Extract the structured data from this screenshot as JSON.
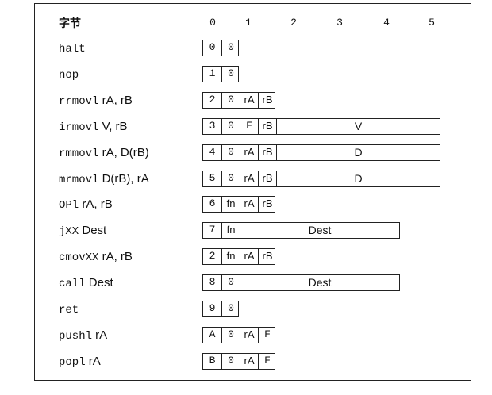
{
  "header": {
    "title": "字节",
    "columns": [
      "0",
      "1",
      "2",
      "3",
      "4",
      "5"
    ]
  },
  "instructions": [
    {
      "mnemonic": "halt",
      "operands": "",
      "fields": [
        "0",
        "0"
      ]
    },
    {
      "mnemonic": "nop",
      "operands": "",
      "fields": [
        "1",
        "0"
      ]
    },
    {
      "mnemonic": "rrmovl",
      "operands": "rA, rB",
      "fields": [
        "2",
        "0",
        "rA",
        "rB"
      ]
    },
    {
      "mnemonic": "irmovl",
      "operands": "V, rB",
      "fields": [
        "3",
        "0",
        "F",
        "rB"
      ],
      "extended": "V"
    },
    {
      "mnemonic": "rmmovl",
      "operands": "rA, D(rB)",
      "fields": [
        "4",
        "0",
        "rA",
        "rB"
      ],
      "extended": "D"
    },
    {
      "mnemonic": "mrmovl",
      "operands": "D(rB), rA",
      "fields": [
        "5",
        "0",
        "rA",
        "rB"
      ],
      "extended": "D"
    },
    {
      "mnemonic": "OPl",
      "operands": "rA, rB",
      "fields": [
        "6",
        "fn",
        "rA",
        "rB"
      ]
    },
    {
      "mnemonic": "jXX",
      "operands": "Dest",
      "fields": [
        "7",
        "fn"
      ],
      "extended": "Dest"
    },
    {
      "mnemonic": "cmovXX",
      "operands": "rA, rB",
      "fields": [
        "2",
        "fn",
        "rA",
        "rB"
      ]
    },
    {
      "mnemonic": "call",
      "operands": "Dest",
      "fields": [
        "8",
        "0"
      ],
      "extended": "Dest"
    },
    {
      "mnemonic": "ret",
      "operands": "",
      "fields": [
        "9",
        "0"
      ]
    },
    {
      "mnemonic": "pushl",
      "operands": "rA",
      "fields": [
        "A",
        "0",
        "rA",
        "F"
      ]
    },
    {
      "mnemonic": "popl",
      "operands": "rA",
      "fields": [
        "B",
        "0",
        "rA",
        "F"
      ]
    }
  ]
}
